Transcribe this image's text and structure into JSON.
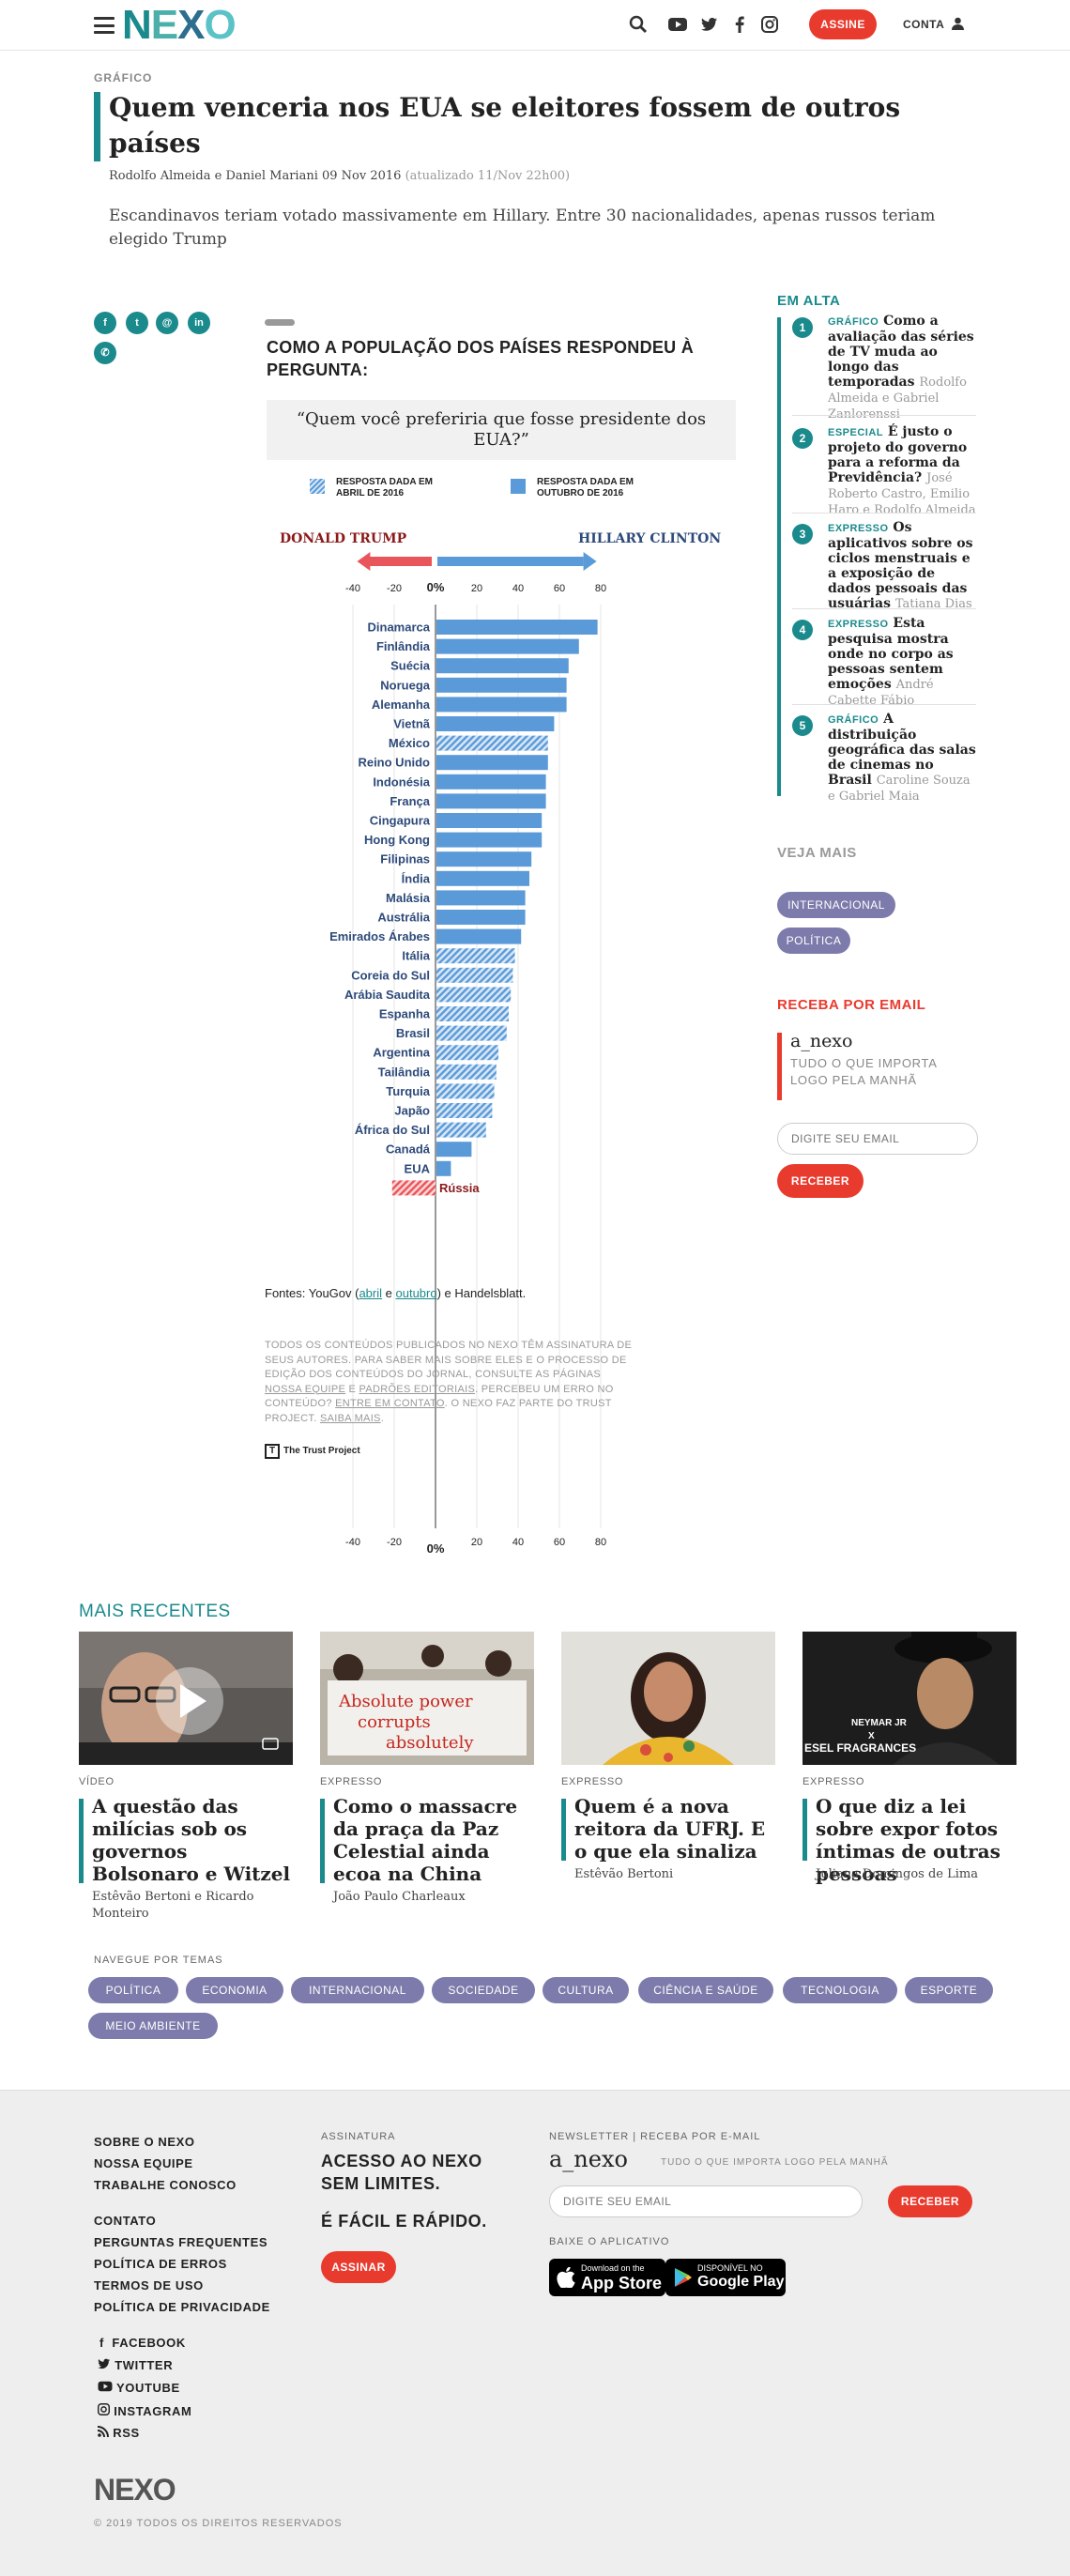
{
  "header": {
    "logo": "NEXO",
    "assine": "ASSINE",
    "conta": "CONTA"
  },
  "article": {
    "kicker": "GRÁFICO",
    "title": "Quem venceria nos EUA se eleitores fossem de outros países",
    "byline": "Rodolfo Almeida e Daniel Mariani 09 Nov 2016",
    "updated": "(atualizado 11/Nov 22h00)",
    "lede": "Escandinavos teriam votado massivamente em Hillary. Entre 30 nacionalidades, apenas russos teriam elegido Trump"
  },
  "share_icons": [
    "facebook-icon",
    "twitter-icon",
    "email-icon",
    "linkedin-icon",
    "whatsapp-icon"
  ],
  "chart_intro": {
    "title": "COMO A POPULAÇÃO DOS PAÍSES RESPONDEU À PERGUNTA:",
    "question": "“Quem você preferiria que fosse presidente dos EUA?”",
    "legend_april": "RESPOSTA DADA EM ABRIL DE 2016",
    "legend_october": "RESPOSTA DADA EM OUTUBRO DE 2016",
    "left_label": "DONALD TRUMP",
    "right_label": "HILLARY CLINTON",
    "colors": {
      "bar": "#5a9ad8",
      "trump": "#e8555a",
      "trump_text": "#8b1a1a",
      "clinton_text": "#2d4a7a"
    }
  },
  "chart_data": {
    "type": "bar",
    "orientation": "horizontal",
    "categories": [
      "Dinamarca",
      "Finlândia",
      "Suécia",
      "Noruega",
      "Alemanha",
      "Vietnã",
      "México",
      "Reino Unido",
      "Indonésia",
      "França",
      "Cingapura",
      "Hong Kong",
      "Filipinas",
      "Índia",
      "Malásia",
      "Austrália",
      "Emirados Árabes",
      "Itália",
      "Coreia do Sul",
      "Arábia Saudita",
      "Espanha",
      "Brasil",
      "Argentina",
      "Tailândia",
      "Turquia",
      "Japão",
      "África do Sul",
      "Canadá",
      "EUA",
      "Rússia"
    ],
    "values": [
      78,
      69,
      64,
      63,
      63,
      57,
      54,
      54,
      53,
      53,
      51,
      51,
      46,
      45,
      43,
      43,
      41,
      38,
      37,
      36,
      35,
      34,
      30,
      29,
      28,
      27,
      24,
      17,
      7,
      -21
    ],
    "response": [
      "outubro",
      "outubro",
      "outubro",
      "outubro",
      "outubro",
      "outubro",
      "abril",
      "outubro",
      "outubro",
      "outubro",
      "outubro",
      "outubro",
      "outubro",
      "outubro",
      "outubro",
      "outubro",
      "outubro",
      "abril",
      "abril",
      "abril",
      "abril",
      "abril",
      "abril",
      "abril",
      "abril",
      "abril",
      "abril",
      "outubro",
      "outubro",
      "abril"
    ],
    "xlim": [
      -40,
      80
    ],
    "xticks": [
      "-40",
      "-20",
      "0%",
      "20",
      "40",
      "60",
      "80"
    ],
    "xtick_values": [
      -40,
      -20,
      0,
      20,
      40,
      60,
      80
    ]
  },
  "sources": {
    "prefix": "Fontes: YouGov (",
    "april": "abril",
    "mid": " e ",
    "october": "outubro",
    "suffix": ") e Handelsblatt."
  },
  "disclaimer": {
    "t1": "TODOS OS CONTEÚDOS PUBLICADOS NO NEXO TÊM ASSINATURA DE SEUS AUTORES. PARA SABER MAIS SOBRE ELES E O PROCESSO DE EDIÇÃO DOS CONTEÚDOS DO JORNAL, CONSULTE AS PÁGINAS ",
    "l1": "NOSSA EQUIPE",
    "t2": " E ",
    "l2": "PADRÕES EDITORIAIS",
    "t3": ". PERCEBEU UM ERRO NO CONTEÚDO? ",
    "l3": "ENTRE EM CONTATO",
    "t4": ". O NEXO FAZ PARTE DO TRUST PROJECT. ",
    "l4": "SAIBA MAIS",
    "t5": "."
  },
  "trust": "The Trust Project",
  "sidebar": {
    "em_alta": "EM ALTA",
    "items": [
      {
        "n": "1",
        "tag": "GRÁFICO",
        "title": "Como a avaliação das séries de TV muda ao longo das temporadas",
        "au": "Rodolfo Almeida e Gabriel Zanlorenssi"
      },
      {
        "n": "2",
        "tag": "ESPECIAL",
        "title": "É justo o projeto do governo para a reforma da Previdência?",
        "au": "José Roberto Castro, Emilio Haro e Rodolfo Almeida"
      },
      {
        "n": "3",
        "tag": "EXPRESSO",
        "title": "Os aplicativos sobre os ciclos menstruais e a exposição de dados pessoais das usuárias",
        "au": "Tatiana Dias"
      },
      {
        "n": "4",
        "tag": "EXPRESSO",
        "title": "Esta pesquisa mostra onde no corpo as pessoas sentem emoções",
        "au": "André Cabette Fábio"
      },
      {
        "n": "5",
        "tag": "GRÁFICO",
        "title": "A distribuição geográfica das salas de cinemas no Brasil",
        "au": "Caroline Souza e Gabriel Maia"
      }
    ],
    "veja_mais": "VEJA MAIS",
    "tags": [
      "INTERNACIONAL",
      "POLÍTICA"
    ],
    "receba": "RECEBA POR EMAIL",
    "newsletter_name": "a_nexo",
    "newsletter_sub": "TUDO O QUE IMPORTA LOGO PELA MANHÃ",
    "email_placeholder": "DIGITE SEU EMAIL",
    "receber": "RECEBER"
  },
  "recentes": {
    "title": "MAIS RECENTES",
    "cards": [
      {
        "kicker": "VÍDEO",
        "title": "A questão das milícias sob os governos Bolsonaro e Witzel",
        "au": "Estêvão Bertoni e Ricardo Monteiro"
      },
      {
        "kicker": "EXPRESSO",
        "title": "Como o massacre da praça da Paz Celestial ainda ecoa na China",
        "au": "João Paulo Charleaux",
        "sign1": "Absolute power",
        "sign2": "corrupts",
        "sign3": "absolutely"
      },
      {
        "kicker": "EXPRESSO",
        "title": "Quem é a nova reitora da UFRJ. E o que ela sinaliza",
        "au": "Estêvão Bertoni"
      },
      {
        "kicker": "EXPRESSO",
        "title": "O que diz a lei sobre expor fotos íntimas de outras pessoas",
        "au": "Juliana Domingos de Lima",
        "photo_text1": "NEYMAR JR",
        "photo_text2": "X",
        "photo_text3": "ESEL FRAGRANCES"
      }
    ]
  },
  "navegue": {
    "title": "NAVEGUE POR TEMAS",
    "tags": [
      "POLÍTICA",
      "ECONOMIA",
      "INTERNACIONAL",
      "SOCIEDADE",
      "CULTURA",
      "CIÊNCIA E SAÚDE",
      "TECNOLOGIA",
      "ESPORTE",
      "MEIO AMBIENTE"
    ]
  },
  "footer": {
    "links1": [
      "SOBRE O NEXO",
      "NOSSA EQUIPE",
      "TRABALHE CONOSCO"
    ],
    "links2": [
      "CONTATO",
      "PERGUNTAS FREQUENTES",
      "POLÍTICA DE ERROS",
      "TERMOS DE USO",
      "POLÍTICA DE PRIVACIDADE"
    ],
    "social": [
      "FACEBOOK",
      "TWITTER",
      "YOUTUBE",
      "INSTAGRAM",
      "RSS"
    ],
    "assinatura_label": "ASSINATURA",
    "acesso": "ACESSO AO NEXO SEM LIMITES.",
    "facil": "É FÁCIL E RÁPIDO.",
    "assinar": "ASSINAR",
    "newsletter_label": "NEWSLETTER | RECEBA POR E-MAIL",
    "newsletter_name": "a_nexo",
    "newsletter_sub": "TUDO O QUE IMPORTA LOGO PELA MANHÃ",
    "email_placeholder": "DIGITE SEU EMAIL",
    "receber": "RECEBER",
    "baixe": "BAIXE O APLICATIVO",
    "appstore_small": "Download on the",
    "appstore": "App Store",
    "gplay_small": "DISPONÍVEL NO",
    "gplay": "Google Play",
    "logo": "NEXO",
    "copyright": "© 2019 TODOS OS DIREITOS RESERVADOS"
  }
}
